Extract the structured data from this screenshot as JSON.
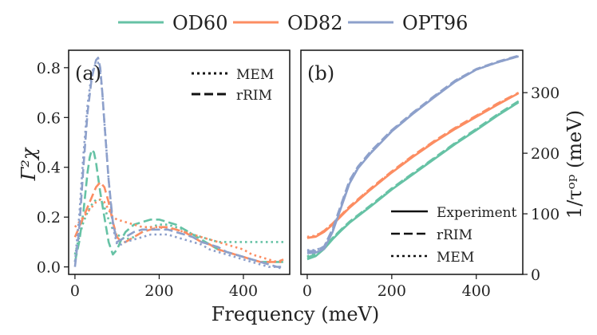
{
  "figure": {
    "xlabel": "Frequency (meV)",
    "legend": {
      "entries": [
        {
          "name": "OD60",
          "color": "#66c2a5"
        },
        {
          "name": "OD82",
          "color": "#fc8d62"
        },
        {
          "name": "OPT96",
          "color": "#8da0cb"
        }
      ]
    }
  },
  "chart_data": [
    {
      "type": "line",
      "panel_label": "(a)",
      "title": "",
      "xlabel": "Frequency (meV)",
      "ylabel": "Γ²χ",
      "xlim": [
        -15,
        510
      ],
      "ylim": [
        -0.03,
        0.87
      ],
      "xticks": [
        0,
        200,
        400
      ],
      "xtick_labels": [
        "0",
        "200",
        "400"
      ],
      "yticks": [
        0.0,
        0.2,
        0.4,
        0.6,
        0.8
      ],
      "ytick_labels": [
        "0.0",
        "0.2",
        "0.4",
        "0.6",
        "0.8"
      ],
      "style_legend": {
        "location": "top-right",
        "entries": [
          {
            "label": "MEM",
            "dash": "dotted"
          },
          {
            "label": "rRIM",
            "dash": "dashed"
          }
        ]
      },
      "series": [
        {
          "name": "OD60",
          "style": "MEM",
          "color": "#66c2a5",
          "x": [
            0,
            10,
            20,
            30,
            40,
            50,
            60,
            70,
            80,
            90,
            100,
            120,
            140,
            160,
            180,
            200,
            220,
            240,
            260,
            280,
            300,
            320,
            340,
            360,
            380,
            400,
            420,
            440,
            460,
            480,
            495
          ],
          "y": [
            0.05,
            0.12,
            0.18,
            0.22,
            0.25,
            0.27,
            0.27,
            0.24,
            0.19,
            0.15,
            0.13,
            0.11,
            0.12,
            0.14,
            0.16,
            0.17,
            0.17,
            0.16,
            0.15,
            0.13,
            0.12,
            0.11,
            0.1,
            0.1,
            0.1,
            0.1,
            0.1,
            0.1,
            0.1,
            0.1,
            0.1
          ]
        },
        {
          "name": "OD60",
          "style": "rRIM",
          "color": "#66c2a5",
          "x": [
            0,
            10,
            20,
            30,
            35,
            40,
            45,
            50,
            55,
            60,
            70,
            80,
            90,
            100,
            110,
            120,
            140,
            160,
            180,
            200,
            220,
            240,
            260,
            280,
            300,
            320,
            340,
            360,
            380,
            400,
            420,
            440,
            460,
            480,
            495
          ],
          "y": [
            0.02,
            0.1,
            0.22,
            0.38,
            0.44,
            0.47,
            0.46,
            0.42,
            0.36,
            0.3,
            0.2,
            0.1,
            0.05,
            0.07,
            0.11,
            0.14,
            0.17,
            0.18,
            0.19,
            0.19,
            0.18,
            0.17,
            0.15,
            0.13,
            0.11,
            0.09,
            0.07,
            0.06,
            0.05,
            0.04,
            0.03,
            0.02,
            0.02,
            0.02,
            0.02
          ]
        },
        {
          "name": "OD82",
          "style": "MEM",
          "color": "#fc8d62",
          "x": [
            0,
            10,
            20,
            30,
            40,
            50,
            60,
            70,
            80,
            90,
            100,
            120,
            140,
            160,
            180,
            200,
            220,
            240,
            260,
            280,
            300,
            320,
            340,
            360,
            380,
            400,
            420,
            440,
            460,
            480,
            495
          ],
          "y": [
            0.16,
            0.18,
            0.2,
            0.22,
            0.24,
            0.26,
            0.27,
            0.26,
            0.23,
            0.2,
            0.19,
            0.18,
            0.17,
            0.16,
            0.16,
            0.16,
            0.15,
            0.15,
            0.14,
            0.13,
            0.12,
            0.11,
            0.1,
            0.09,
            0.08,
            0.07,
            0.05,
            0.04,
            0.03,
            0.02,
            0.02
          ]
        },
        {
          "name": "OD82",
          "style": "rRIM",
          "color": "#fc8d62",
          "x": [
            0,
            10,
            20,
            30,
            40,
            50,
            60,
            70,
            80,
            90,
            100,
            110,
            120,
            140,
            160,
            180,
            200,
            220,
            240,
            260,
            280,
            300,
            320,
            340,
            360,
            380,
            400,
            420,
            440,
            460,
            480,
            495
          ],
          "y": [
            0.12,
            0.16,
            0.2,
            0.24,
            0.28,
            0.32,
            0.34,
            0.32,
            0.26,
            0.18,
            0.12,
            0.1,
            0.1,
            0.12,
            0.14,
            0.15,
            0.16,
            0.16,
            0.15,
            0.14,
            0.12,
            0.1,
            0.09,
            0.07,
            0.06,
            0.05,
            0.04,
            0.03,
            0.02,
            0.02,
            0.02,
            0.03
          ]
        },
        {
          "name": "OPT96",
          "style": "MEM",
          "color": "#8da0cb",
          "x": [
            0,
            10,
            20,
            30,
            40,
            50,
            55,
            60,
            65,
            70,
            80,
            90,
            100,
            110,
            120,
            140,
            160,
            180,
            200,
            220,
            240,
            260,
            280,
            300,
            320,
            340,
            360,
            380,
            400,
            420,
            440,
            460,
            480,
            495
          ],
          "y": [
            0.02,
            0.2,
            0.45,
            0.65,
            0.78,
            0.82,
            0.82,
            0.78,
            0.7,
            0.58,
            0.35,
            0.16,
            0.09,
            0.09,
            0.1,
            0.11,
            0.12,
            0.13,
            0.13,
            0.13,
            0.12,
            0.11,
            0.1,
            0.09,
            0.07,
            0.06,
            0.05,
            0.04,
            0.03,
            0.02,
            0.01,
            0.0,
            0.0,
            -0.01
          ]
        },
        {
          "name": "OPT96",
          "style": "rRIM",
          "color": "#8da0cb",
          "x": [
            0,
            10,
            20,
            30,
            40,
            50,
            55,
            60,
            65,
            70,
            80,
            90,
            100,
            110,
            120,
            140,
            160,
            180,
            200,
            220,
            240,
            260,
            280,
            300,
            320,
            340,
            360,
            380,
            400,
            420,
            440,
            460,
            480,
            495
          ],
          "y": [
            0.0,
            0.15,
            0.4,
            0.62,
            0.76,
            0.83,
            0.84,
            0.8,
            0.7,
            0.58,
            0.35,
            0.18,
            0.1,
            0.11,
            0.12,
            0.14,
            0.15,
            0.15,
            0.15,
            0.15,
            0.14,
            0.13,
            0.12,
            0.1,
            0.09,
            0.08,
            0.06,
            0.05,
            0.04,
            0.03,
            0.02,
            0.01,
            0.0,
            0.0
          ]
        }
      ]
    },
    {
      "type": "line",
      "panel_label": "(b)",
      "title": "",
      "xlabel": "Frequency (meV)",
      "ylabel": "1/τᵒᵖ (meV)",
      "ylabel_position": "right",
      "xlim": [
        -15,
        510
      ],
      "ylim": [
        0,
        370
      ],
      "xticks": [
        0,
        200,
        400
      ],
      "xtick_labels": [
        "0",
        "200",
        "400"
      ],
      "yticks": [
        0,
        100,
        200,
        300
      ],
      "ytick_labels": [
        "0",
        "100",
        "200",
        "300"
      ],
      "style_legend": {
        "location": "bottom-right",
        "entries": [
          {
            "label": "Experiment",
            "dash": "solid"
          },
          {
            "label": "rRIM",
            "dash": "dashed"
          },
          {
            "label": "MEM",
            "dash": "dotted"
          }
        ]
      },
      "series": [
        {
          "name": "OD60",
          "style": "Experiment",
          "color": "#66c2a5",
          "x": [
            0,
            20,
            40,
            60,
            80,
            100,
            150,
            200,
            250,
            300,
            350,
            400,
            450,
            500
          ],
          "y": [
            25,
            30,
            42,
            58,
            72,
            85,
            112,
            140,
            165,
            190,
            215,
            238,
            262,
            284
          ]
        },
        {
          "name": "OD60",
          "style": "rRIM",
          "color": "#66c2a5",
          "x": [
            0,
            20,
            40,
            60,
            80,
            100,
            150,
            200,
            250,
            300,
            350,
            400,
            450,
            500
          ],
          "y": [
            28,
            33,
            45,
            60,
            74,
            87,
            114,
            142,
            167,
            192,
            217,
            240,
            264,
            286
          ]
        },
        {
          "name": "OD60",
          "style": "MEM",
          "color": "#66c2a5",
          "x": [
            0,
            20,
            40,
            60,
            80,
            100,
            150,
            200,
            250,
            300,
            350,
            400,
            450,
            500
          ],
          "y": [
            30,
            34,
            46,
            60,
            73,
            86,
            113,
            141,
            166,
            191,
            216,
            239,
            263,
            284
          ]
        },
        {
          "name": "OD82",
          "style": "Experiment",
          "color": "#fc8d62",
          "x": [
            0,
            20,
            40,
            60,
            80,
            100,
            150,
            200,
            250,
            300,
            350,
            400,
            450,
            500
          ],
          "y": [
            60,
            62,
            70,
            82,
            96,
            110,
            140,
            168,
            194,
            218,
            240,
            260,
            280,
            299
          ]
        },
        {
          "name": "OD82",
          "style": "rRIM",
          "color": "#fc8d62",
          "x": [
            0,
            20,
            40,
            60,
            80,
            100,
            150,
            200,
            250,
            300,
            350,
            400,
            450,
            500
          ],
          "y": [
            60,
            63,
            72,
            84,
            98,
            112,
            142,
            170,
            196,
            220,
            242,
            262,
            282,
            300
          ]
        },
        {
          "name": "OD82",
          "style": "MEM",
          "color": "#fc8d62",
          "x": [
            0,
            20,
            40,
            60,
            80,
            100,
            150,
            200,
            250,
            300,
            350,
            400,
            450,
            500
          ],
          "y": [
            62,
            64,
            72,
            84,
            97,
            111,
            141,
            169,
            195,
            219,
            241,
            261,
            281,
            299
          ]
        },
        {
          "name": "OPT96",
          "style": "Experiment",
          "color": "#8da0cb",
          "x": [
            0,
            20,
            40,
            60,
            80,
            100,
            120,
            150,
            200,
            250,
            300,
            350,
            400,
            450,
            500
          ],
          "y": [
            35,
            36,
            42,
            70,
            110,
            150,
            175,
            200,
            236,
            265,
            292,
            318,
            338,
            350,
            360
          ]
        },
        {
          "name": "OPT96",
          "style": "rRIM",
          "color": "#8da0cb",
          "x": [
            0,
            20,
            40,
            60,
            80,
            100,
            120,
            150,
            200,
            250,
            300,
            350,
            400,
            450,
            500
          ],
          "y": [
            38,
            39,
            46,
            75,
            115,
            155,
            178,
            203,
            238,
            267,
            294,
            320,
            339,
            351,
            361
          ]
        },
        {
          "name": "OPT96",
          "style": "MEM",
          "color": "#8da0cb",
          "x": [
            0,
            20,
            40,
            60,
            80,
            100,
            120,
            150,
            200,
            250,
            300,
            350,
            400,
            450,
            500
          ],
          "y": [
            40,
            40,
            46,
            72,
            112,
            152,
            176,
            201,
            237,
            266,
            293,
            319,
            338,
            350,
            360
          ]
        }
      ]
    }
  ]
}
